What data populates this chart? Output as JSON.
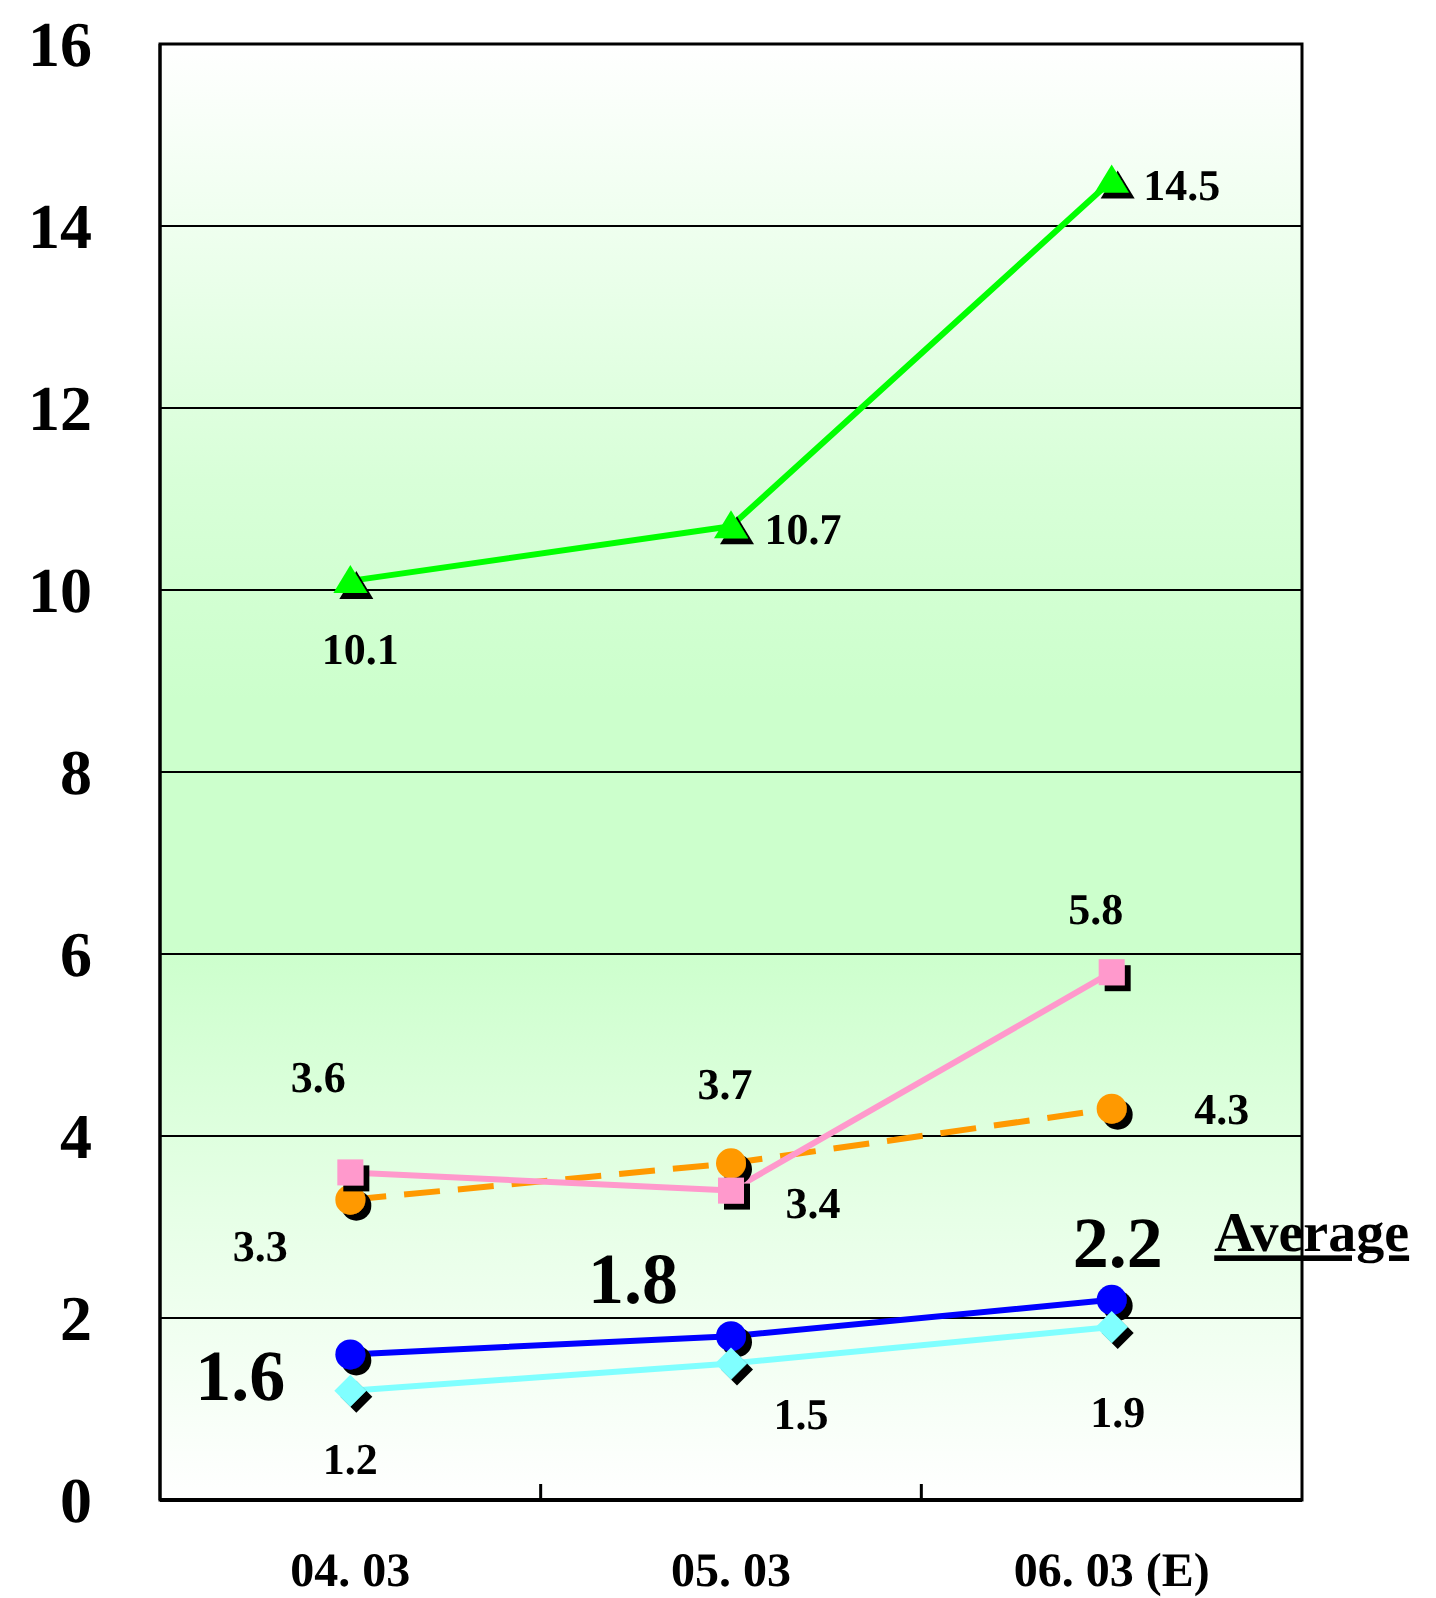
{
  "chart_data": {
    "type": "line",
    "categories": [
      "04. 03",
      "05. 03",
      "06. 03 (E)"
    ],
    "series": [
      {
        "color": "#00ff00",
        "marker": "triangle",
        "values": [
          10.1,
          10.7,
          14.5
        ]
      },
      {
        "color": "#ff9900",
        "marker": "circle",
        "line_style": "dashed",
        "values": [
          3.3,
          3.7,
          4.3
        ]
      },
      {
        "color": "#ff99cc",
        "marker": "square",
        "values": [
          3.6,
          3.4,
          5.8
        ]
      },
      {
        "name": "Average",
        "color": "#0000ff",
        "marker": "circle",
        "values": [
          1.6,
          1.8,
          2.2
        ]
      },
      {
        "color": "#80ffff",
        "marker": "diamond",
        "values": [
          1.2,
          1.5,
          1.9
        ]
      }
    ],
    "ylim": [
      0,
      16
    ],
    "yticks": [
      0,
      2,
      4,
      6,
      8,
      10,
      12,
      14,
      16
    ],
    "grid": "y",
    "data_labels": true
  }
}
